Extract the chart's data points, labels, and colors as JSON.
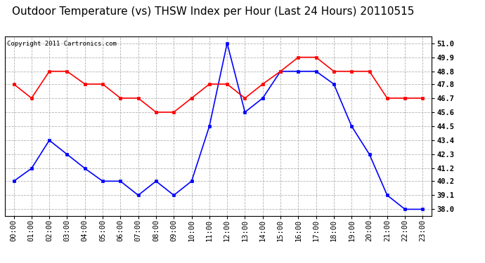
{
  "title": "Outdoor Temperature (vs) THSW Index per Hour (Last 24 Hours) 20110515",
  "copyright": "Copyright 2011 Cartronics.com",
  "hours": [
    "00:00",
    "01:00",
    "02:00",
    "03:00",
    "04:00",
    "05:00",
    "06:00",
    "07:00",
    "08:00",
    "09:00",
    "10:00",
    "11:00",
    "12:00",
    "13:00",
    "14:00",
    "15:00",
    "16:00",
    "17:00",
    "18:00",
    "19:00",
    "20:00",
    "21:00",
    "22:00",
    "23:00"
  ],
  "temp_blue": [
    40.2,
    41.2,
    43.4,
    42.3,
    41.2,
    40.2,
    40.2,
    39.1,
    40.2,
    39.1,
    40.2,
    44.5,
    51.0,
    45.6,
    46.7,
    48.8,
    48.8,
    48.8,
    47.8,
    44.5,
    42.3,
    39.1,
    38.0,
    38.0
  ],
  "temp_red": [
    47.8,
    46.7,
    48.8,
    48.8,
    47.8,
    47.8,
    46.7,
    46.7,
    45.6,
    45.6,
    46.7,
    47.8,
    47.8,
    46.7,
    47.8,
    48.8,
    49.9,
    49.9,
    48.8,
    48.8,
    48.8,
    46.7,
    46.7,
    46.7
  ],
  "y_ticks": [
    38.0,
    39.1,
    40.2,
    41.2,
    42.3,
    43.4,
    44.5,
    45.6,
    46.7,
    47.8,
    48.8,
    49.9,
    51.0
  ],
  "y_min": 37.5,
  "y_max": 51.5,
  "blue_color": "#0000ff",
  "red_color": "#ff0000",
  "bg_color": "#ffffff",
  "grid_color": "#aaaaaa",
  "title_fontsize": 11,
  "copyright_fontsize": 6.5,
  "tick_fontsize": 7.5
}
